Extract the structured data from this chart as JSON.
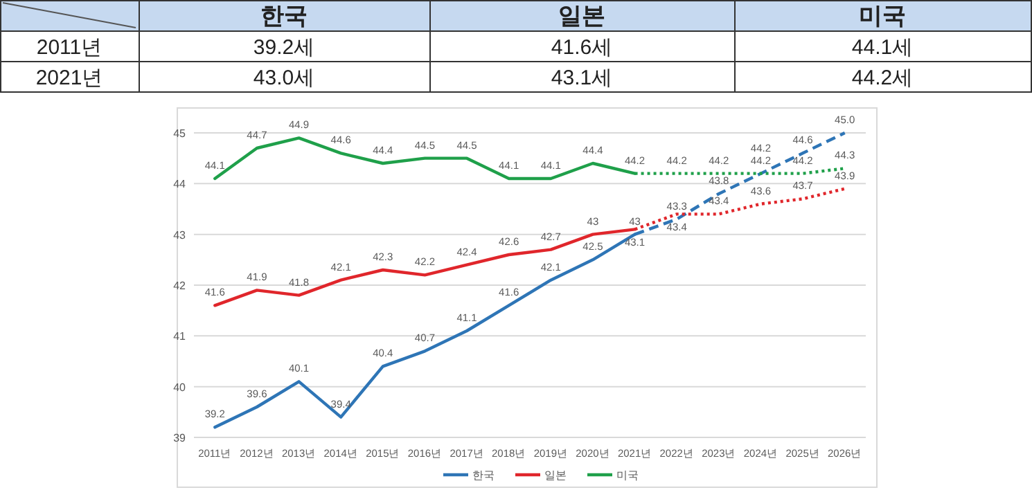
{
  "chart_data": [
    {
      "type": "other",
      "categories": [
        "한국",
        "일본",
        "미국"
      ],
      "y_categories": [
        "2011년",
        "2021년"
      ],
      "cell_labels": [
        [
          "39.2세",
          "41.6세",
          "44.1세"
        ],
        [
          "43.0세",
          "43.1세",
          "44.2세"
        ]
      ]
    },
    {
      "type": "line",
      "categories": [
        "2011년",
        "2012년",
        "2013년",
        "2014년",
        "2015년",
        "2016년",
        "2017년",
        "2018년",
        "2019년",
        "2020년",
        "2021년",
        "2022년",
        "2023년",
        "2024년",
        "2025년",
        "2026년"
      ],
      "ylim": [
        39,
        45
      ],
      "yticks": [
        39,
        40,
        41,
        42,
        43,
        44,
        45
      ],
      "grid": "y",
      "legend": "bottom",
      "series": [
        {
          "name": "한국",
          "color": "#2e75b6",
          "line_style": "solid",
          "values": [
            39.2,
            39.6,
            40.1,
            39.4,
            40.4,
            40.7,
            41.1,
            41.6,
            42.1,
            42.5,
            43.0,
            null,
            null,
            null,
            null,
            null
          ],
          "value_labels": [
            "39.2",
            "39.6",
            "40.1",
            "39.4",
            "40.4",
            "40.7",
            "41.1",
            "41.6",
            "42.1",
            "42.5",
            "43",
            null,
            null,
            null,
            null,
            null
          ]
        },
        {
          "name": "일본",
          "color": "#e0262b",
          "line_style": "solid",
          "values": [
            41.6,
            41.9,
            41.8,
            42.1,
            42.3,
            42.2,
            42.4,
            42.6,
            42.7,
            43.0,
            43.1,
            null,
            null,
            null,
            null,
            null
          ],
          "value_labels": [
            "41.6",
            "41.9",
            "41.8",
            "42.1",
            "42.3",
            "42.2",
            "42.4",
            "42.6",
            "42.7",
            "43",
            "43.1",
            null,
            null,
            null,
            null,
            null
          ]
        },
        {
          "name": "미국",
          "color": "#1fa04a",
          "line_style": "solid",
          "values": [
            44.1,
            44.7,
            44.9,
            44.6,
            44.4,
            44.5,
            44.5,
            44.1,
            44.1,
            44.4,
            44.2,
            null,
            null,
            null,
            null,
            null
          ],
          "value_labels": [
            "44.1",
            "44.7",
            "44.9",
            "44.6",
            "44.4",
            "44.5",
            "44.5",
            "44.1",
            "44.1",
            "44.4",
            "44.2",
            null,
            null,
            null,
            null,
            null
          ]
        },
        {
          "color": "#2e75b6",
          "line_style": "dashed",
          "values": [
            null,
            null,
            null,
            null,
            null,
            null,
            null,
            null,
            null,
            null,
            43.0,
            43.3,
            43.8,
            44.2,
            44.6,
            45.0
          ],
          "value_labels": [
            null,
            null,
            null,
            null,
            null,
            null,
            null,
            null,
            null,
            null,
            null,
            "43.3",
            "43.8",
            "44.2",
            "44.6",
            "45.0"
          ]
        },
        {
          "color": "#e0262b",
          "line_style": "dotted",
          "values": [
            null,
            null,
            null,
            null,
            null,
            null,
            null,
            null,
            null,
            null,
            43.1,
            43.4,
            43.4,
            43.6,
            43.7,
            43.9
          ],
          "value_labels": [
            null,
            null,
            null,
            null,
            null,
            null,
            null,
            null,
            null,
            null,
            null,
            "43.4",
            "43.4",
            "43.6",
            "43.7",
            "43.9"
          ]
        },
        {
          "color": "#1fa04a",
          "line_style": "dotted",
          "values": [
            null,
            null,
            null,
            null,
            null,
            null,
            null,
            null,
            null,
            null,
            44.2,
            44.2,
            44.2,
            44.2,
            44.2,
            44.3
          ],
          "value_labels": [
            null,
            null,
            null,
            null,
            null,
            null,
            null,
            null,
            null,
            null,
            null,
            "44.2",
            "44.2",
            "44.2",
            "44.2",
            "44.3"
          ]
        }
      ]
    }
  ]
}
